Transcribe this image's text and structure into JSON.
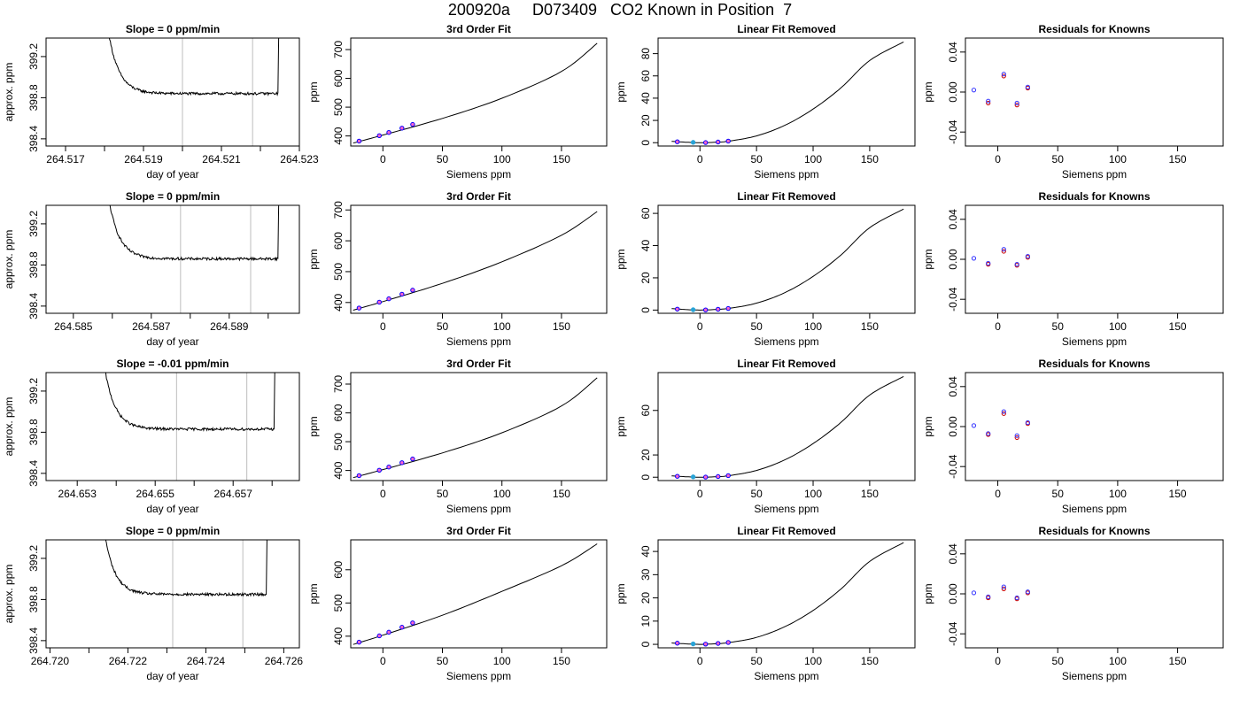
{
  "figure_title": "200920a     D073409   CO2 Known in Position  7",
  "panel_titles": {
    "fit": "3rd Order Fit",
    "linear_removed": "Linear Fit Removed",
    "residuals": "Residuals for Knowns"
  },
  "axis_labels": {
    "approx_ppm": "approx. ppm",
    "day_of_year": "day of year",
    "ppm": "ppm",
    "siemens_ppm": "Siemens ppm"
  },
  "chart_data": [
    {
      "type": "line",
      "panel": "time-series",
      "row": 1,
      "title": "Slope =  0  ppm/min",
      "xlabel": "day of year",
      "ylabel": "approx. ppm",
      "xlim": [
        264.5165,
        264.523
      ],
      "ylim": [
        398.33,
        399.38
      ],
      "xticks": [
        264.517,
        264.518,
        264.519,
        264.52,
        264.521,
        264.522,
        264.523
      ],
      "xtick_labels": [
        "264.517",
        "",
        "264.519",
        "",
        "264.521",
        "",
        "264.523"
      ],
      "yticks": [
        398.4,
        398.8,
        399.2
      ],
      "ytick_labels": [
        "398.4",
        "398.8",
        "399.2"
      ],
      "window_x": [
        264.52,
        264.5218
      ],
      "series": [
        {
          "x_start": 264.5181,
          "x_end": 264.52245,
          "plateau": 398.84
        }
      ]
    },
    {
      "type": "line",
      "panel": "time-series",
      "row": 2,
      "title": "Slope =  0  ppm/min",
      "xlabel": "day of year",
      "ylabel": "approx. ppm",
      "xlim": [
        264.5843,
        264.5908
      ],
      "ylim": [
        398.33,
        399.38
      ],
      "xticks": [
        264.585,
        264.586,
        264.587,
        264.588,
        264.589,
        264.59
      ],
      "xtick_labels": [
        "264.585",
        "",
        "264.587",
        "",
        "264.589",
        ""
      ],
      "yticks": [
        398.4,
        398.8,
        399.2
      ],
      "ytick_labels": [
        "398.4",
        "398.8",
        "399.2"
      ],
      "window_x": [
        264.58775,
        264.58955
      ],
      "series": [
        {
          "x_start": 264.5859,
          "x_end": 264.59025,
          "plateau": 398.86
        }
      ]
    },
    {
      "type": "line",
      "panel": "time-series",
      "row": 3,
      "title": "Slope =  -0.01  ppm/min",
      "xlabel": "day of year",
      "ylabel": "approx. ppm",
      "xlim": [
        264.6522,
        264.6587
      ],
      "ylim": [
        398.33,
        399.38
      ],
      "xticks": [
        264.653,
        264.654,
        264.655,
        264.656,
        264.657,
        264.658
      ],
      "xtick_labels": [
        "264.653",
        "",
        "264.655",
        "",
        "264.657",
        ""
      ],
      "yticks": [
        398.4,
        398.8,
        399.2
      ],
      "ytick_labels": [
        "398.4",
        "398.8",
        "399.2"
      ],
      "window_x": [
        264.65555,
        264.65735
      ],
      "series": [
        {
          "x_start": 264.6537,
          "x_end": 264.65805,
          "plateau": 398.83
        }
      ]
    },
    {
      "type": "line",
      "panel": "time-series",
      "row": 4,
      "title": "Slope =  0  ppm/min",
      "xlabel": "day of year",
      "ylabel": "approx. ppm",
      "xlim": [
        264.7199,
        264.7264
      ],
      "ylim": [
        398.33,
        399.38
      ],
      "xticks": [
        264.72,
        264.721,
        264.722,
        264.723,
        264.724,
        264.725,
        264.726
      ],
      "xtick_labels": [
        "264.720",
        "",
        "264.722",
        "",
        "264.724",
        "",
        "264.726"
      ],
      "yticks": [
        398.4,
        398.8,
        399.2
      ],
      "ytick_labels": [
        "398.4",
        "398.8",
        "399.2"
      ],
      "window_x": [
        264.72315,
        264.72495
      ],
      "series": [
        {
          "x_start": 264.7214,
          "x_end": 264.72555,
          "plateau": 398.85
        }
      ]
    },
    {
      "type": "line",
      "panel": "cubic-fit",
      "row": 1,
      "title": "3rd Order Fit",
      "xlabel": "Siemens ppm",
      "ylabel": "ppm",
      "xlim": [
        -27,
        188
      ],
      "ylim": [
        365,
        740
      ],
      "xticks": [
        0,
        50,
        100,
        150
      ],
      "yticks": [
        400,
        500,
        600,
        700
      ],
      "curve_points": [
        [
          -25,
          375
        ],
        [
          0,
          403
        ],
        [
          50,
          461
        ],
        [
          100,
          531
        ],
        [
          150,
          624
        ],
        [
          180,
          722
        ]
      ],
      "knowns": [
        [
          -20,
          382
        ],
        [
          -3,
          401
        ],
        [
          5,
          412
        ],
        [
          16,
          427
        ],
        [
          25,
          440
        ]
      ]
    },
    {
      "type": "line",
      "panel": "cubic-fit",
      "row": 2,
      "title": "3rd Order Fit",
      "xlabel": "Siemens ppm",
      "ylabel": "ppm",
      "xlim": [
        -27,
        188
      ],
      "ylim": [
        365,
        715
      ],
      "xticks": [
        0,
        50,
        100,
        150
      ],
      "yticks": [
        400,
        500,
        600,
        700
      ],
      "curve_points": [
        [
          -25,
          375
        ],
        [
          0,
          403
        ],
        [
          50,
          462
        ],
        [
          100,
          532
        ],
        [
          150,
          618
        ],
        [
          180,
          695
        ]
      ],
      "knowns": [
        [
          -20,
          382
        ],
        [
          -3,
          401
        ],
        [
          5,
          412
        ],
        [
          16,
          427
        ],
        [
          25,
          440
        ]
      ]
    },
    {
      "type": "line",
      "panel": "cubic-fit",
      "row": 3,
      "title": "3rd Order Fit",
      "xlabel": "Siemens ppm",
      "ylabel": "ppm",
      "xlim": [
        -27,
        188
      ],
      "ylim": [
        365,
        740
      ],
      "xticks": [
        0,
        50,
        100,
        150
      ],
      "yticks": [
        400,
        500,
        600,
        700
      ],
      "curve_points": [
        [
          -25,
          375
        ],
        [
          0,
          403
        ],
        [
          50,
          461
        ],
        [
          100,
          531
        ],
        [
          150,
          624
        ],
        [
          180,
          722
        ]
      ],
      "knowns": [
        [
          -20,
          382
        ],
        [
          -3,
          401
        ],
        [
          5,
          412
        ],
        [
          16,
          427
        ],
        [
          25,
          440
        ]
      ]
    },
    {
      "type": "line",
      "panel": "cubic-fit",
      "row": 4,
      "title": "3rd Order Fit",
      "xlabel": "Siemens ppm",
      "ylabel": "ppm",
      "xlim": [
        -27,
        188
      ],
      "ylim": [
        365,
        690
      ],
      "xticks": [
        0,
        50,
        100,
        150
      ],
      "yticks": [
        400,
        500,
        600
      ],
      "curve_points": [
        [
          -25,
          375
        ],
        [
          0,
          403
        ],
        [
          50,
          463
        ],
        [
          100,
          535
        ],
        [
          150,
          612
        ],
        [
          180,
          678
        ]
      ],
      "knowns": [
        [
          -20,
          382
        ],
        [
          -3,
          401
        ],
        [
          5,
          412
        ],
        [
          16,
          427
        ],
        [
          25,
          440
        ]
      ]
    },
    {
      "type": "line",
      "panel": "linear-removed",
      "row": 1,
      "title": "Linear Fit Removed",
      "xlabel": "Siemens ppm",
      "ylabel": "ppm",
      "xlim": [
        -37,
        190
      ],
      "ylim": [
        -3,
        94
      ],
      "xticks": [
        0,
        50,
        100,
        150
      ],
      "yticks": [
        0,
        20,
        40,
        60,
        80
      ],
      "curve_points": [
        [
          -25,
          1.2
        ],
        [
          -10,
          0.3
        ],
        [
          0,
          0
        ],
        [
          10,
          0.2
        ],
        [
          25,
          1.3
        ],
        [
          50,
          6.1
        ],
        [
          75,
          15.6
        ],
        [
          100,
          30.2
        ],
        [
          125,
          49.6
        ],
        [
          150,
          73.8
        ],
        [
          180,
          90.5
        ]
      ],
      "knowns": [
        [
          -20,
          0.8
        ],
        [
          -6,
          0.3
        ],
        [
          5,
          0.1
        ],
        [
          16,
          0.6
        ],
        [
          25,
          1.4
        ]
      ],
      "highlight_index": 1
    },
    {
      "type": "line",
      "panel": "linear-removed",
      "row": 2,
      "title": "Linear Fit Removed",
      "xlabel": "Siemens ppm",
      "ylabel": "ppm",
      "xlim": [
        -37,
        190
      ],
      "ylim": [
        -2,
        65
      ],
      "xticks": [
        0,
        50,
        100,
        150
      ],
      "yticks": [
        0,
        20,
        40,
        60
      ],
      "curve_points": [
        [
          -25,
          0.9
        ],
        [
          -10,
          0.2
        ],
        [
          0,
          0
        ],
        [
          10,
          0.2
        ],
        [
          25,
          1.0
        ],
        [
          50,
          4.3
        ],
        [
          75,
          10.8
        ],
        [
          100,
          20.9
        ],
        [
          125,
          34.4
        ],
        [
          150,
          51.1
        ],
        [
          180,
          62.7
        ]
      ],
      "knowns": [
        [
          -20,
          0.6
        ],
        [
          -6,
          0.2
        ],
        [
          5,
          0.1
        ],
        [
          16,
          0.5
        ],
        [
          25,
          1.0
        ]
      ],
      "highlight_index": 1
    },
    {
      "type": "line",
      "panel": "linear-removed",
      "row": 3,
      "title": "Linear Fit Removed",
      "xlabel": "Siemens ppm",
      "ylabel": "ppm",
      "xlim": [
        -37,
        190
      ],
      "ylim": [
        -3,
        94
      ],
      "xticks": [
        0,
        50,
        100,
        150
      ],
      "yticks": [
        0,
        20,
        60
      ],
      "curve_points": [
        [
          -25,
          1.2
        ],
        [
          -10,
          0.3
        ],
        [
          0,
          0
        ],
        [
          10,
          0.2
        ],
        [
          25,
          1.3
        ],
        [
          50,
          6.1
        ],
        [
          75,
          15.6
        ],
        [
          100,
          30.2
        ],
        [
          125,
          49.6
        ],
        [
          150,
          73.8
        ],
        [
          180,
          90.5
        ]
      ],
      "knowns": [
        [
          -20,
          0.8
        ],
        [
          -6,
          0.3
        ],
        [
          5,
          0.1
        ],
        [
          16,
          0.6
        ],
        [
          25,
          1.4
        ]
      ],
      "highlight_index": 1
    },
    {
      "type": "line",
      "panel": "linear-removed",
      "row": 4,
      "title": "Linear Fit Removed",
      "xlabel": "Siemens ppm",
      "ylabel": "ppm",
      "xlim": [
        -37,
        190
      ],
      "ylim": [
        -1.5,
        45
      ],
      "xticks": [
        0,
        50,
        100,
        150
      ],
      "yticks": [
        0,
        10,
        20,
        30,
        40
      ],
      "curve_points": [
        [
          -25,
          0.6
        ],
        [
          -10,
          0.15
        ],
        [
          0,
          0
        ],
        [
          10,
          0.15
        ],
        [
          25,
          0.7
        ],
        [
          50,
          3.0
        ],
        [
          75,
          7.6
        ],
        [
          100,
          14.6
        ],
        [
          125,
          24.0
        ],
        [
          150,
          35.7
        ],
        [
          180,
          43.8
        ]
      ],
      "knowns": [
        [
          -20,
          0.5
        ],
        [
          -6,
          0.2
        ],
        [
          5,
          0.1
        ],
        [
          16,
          0.4
        ],
        [
          25,
          0.8
        ]
      ],
      "highlight_index": 1
    },
    {
      "type": "scatter",
      "panel": "residuals",
      "row": 1,
      "title": "Residuals for Knowns",
      "xlabel": "Siemens ppm",
      "ylabel": "ppm",
      "xlim": [
        -27,
        188
      ],
      "ylim": [
        -0.054,
        0.054
      ],
      "xticks": [
        0,
        50,
        100,
        150
      ],
      "yticks": [
        -0.04,
        0.0,
        0.04
      ],
      "ytick_labels": [
        "-0.04",
        "0.00",
        "0.04"
      ],
      "points": [
        [
          -20,
          0.002
        ],
        [
          -8,
          -0.011
        ],
        [
          -8,
          -0.009
        ],
        [
          5,
          0.016
        ],
        [
          5,
          0.018
        ],
        [
          16,
          -0.013
        ],
        [
          16,
          -0.011
        ],
        [
          25,
          0.004
        ],
        [
          25,
          0.005
        ]
      ]
    },
    {
      "type": "scatter",
      "panel": "residuals",
      "row": 2,
      "title": "Residuals for Knowns",
      "xlabel": "Siemens ppm",
      "ylabel": "ppm",
      "xlim": [
        -27,
        188
      ],
      "ylim": [
        -0.054,
        0.054
      ],
      "xticks": [
        0,
        50,
        100,
        150
      ],
      "yticks": [
        -0.04,
        0.0,
        0.04
      ],
      "ytick_labels": [
        "-0.04",
        "0.00",
        "0.04"
      ],
      "points": [
        [
          -20,
          0.001
        ],
        [
          -8,
          -0.005
        ],
        [
          -8,
          -0.004
        ],
        [
          5,
          0.008
        ],
        [
          5,
          0.01
        ],
        [
          16,
          -0.006
        ],
        [
          16,
          -0.005
        ],
        [
          25,
          0.002
        ],
        [
          25,
          0.003
        ]
      ]
    },
    {
      "type": "scatter",
      "panel": "residuals",
      "row": 3,
      "title": "Residuals for Knowns",
      "xlabel": "Siemens ppm",
      "ylabel": "ppm",
      "xlim": [
        -27,
        188
      ],
      "ylim": [
        -0.054,
        0.054
      ],
      "xticks": [
        0,
        50,
        100,
        150
      ],
      "yticks": [
        -0.04,
        0.0,
        0.04
      ],
      "ytick_labels": [
        "-0.04",
        "0.00",
        "0.04"
      ],
      "points": [
        [
          -20,
          0.001
        ],
        [
          -8,
          -0.008
        ],
        [
          -8,
          -0.007
        ],
        [
          5,
          0.013
        ],
        [
          5,
          0.015
        ],
        [
          16,
          -0.011
        ],
        [
          16,
          -0.009
        ],
        [
          25,
          0.003
        ],
        [
          25,
          0.004
        ]
      ]
    },
    {
      "type": "scatter",
      "panel": "residuals",
      "row": 4,
      "title": "Residuals for Knowns",
      "xlabel": "Siemens ppm",
      "ylabel": "ppm",
      "xlim": [
        -27,
        188
      ],
      "ylim": [
        -0.054,
        0.054
      ],
      "xticks": [
        0,
        50,
        100,
        150
      ],
      "yticks": [
        -0.04,
        0.0,
        0.04
      ],
      "ytick_labels": [
        "-0.04",
        "0.00",
        "0.04"
      ],
      "points": [
        [
          -20,
          0.001
        ],
        [
          -8,
          -0.004
        ],
        [
          -8,
          -0.003
        ],
        [
          5,
          0.005
        ],
        [
          5,
          0.007
        ],
        [
          16,
          -0.005
        ],
        [
          16,
          -0.004
        ],
        [
          25,
          0.001
        ],
        [
          25,
          0.002
        ]
      ]
    }
  ],
  "colors": {
    "axis": "#000000",
    "curve": "#000000",
    "window_lines": "#c8c8c8",
    "known_points": "#0000ff",
    "known_fill": "#ff66cc",
    "highlight_point": "#29a3d6",
    "residual_a": "#cc0000",
    "residual_b": "#3333ff"
  }
}
